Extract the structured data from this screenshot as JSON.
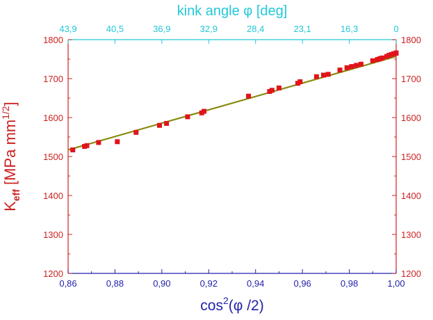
{
  "chart_data": {
    "type": "scatter",
    "top_title": "kink angle φ [deg]",
    "xlabel": {
      "base": "cos",
      "sup": "2",
      "rest": "(φ /2)"
    },
    "ylabel": {
      "base": "K",
      "sub": "eff",
      "rest": " [MPa mm",
      "sup": "1/2",
      "close": "]"
    },
    "xlim": [
      0.86,
      1.0
    ],
    "ylim": [
      1200,
      1800
    ],
    "x_ticks": [
      "0,86",
      "0,88",
      "0,90",
      "0,92",
      "0,94",
      "0,96",
      "0,98",
      "1,00"
    ],
    "y_ticks": [
      "1200",
      "1300",
      "1400",
      "1500",
      "1600",
      "1700",
      "1800"
    ],
    "top_ticks": [
      "43,9",
      "40,5",
      "36,9",
      "32,9",
      "28,4",
      "23,1",
      "16,3",
      "0"
    ],
    "grid": false,
    "colors": {
      "left_axis": "#cc2222",
      "right_axis": "#cc2222",
      "bottom_axis": "#2222aa",
      "top_axis": "#22c8d8",
      "points": "#e0141a",
      "fit_line": "#8a8a10",
      "frame": "#000000"
    },
    "series": [
      {
        "points": [
          [
            0.862,
            1517
          ],
          [
            0.867,
            1526
          ],
          [
            0.868,
            1528
          ],
          [
            0.873,
            1536
          ],
          [
            0.881,
            1538
          ],
          [
            0.889,
            1562
          ],
          [
            0.899,
            1580
          ],
          [
            0.902,
            1585
          ],
          [
            0.911,
            1602
          ],
          [
            0.917,
            1612
          ],
          [
            0.918,
            1616
          ],
          [
            0.937,
            1655
          ],
          [
            0.946,
            1667
          ],
          [
            0.947,
            1670
          ],
          [
            0.95,
            1676
          ],
          [
            0.958,
            1688
          ],
          [
            0.959,
            1692
          ],
          [
            0.966,
            1705
          ],
          [
            0.969,
            1709
          ],
          [
            0.971,
            1711
          ],
          [
            0.976,
            1722
          ],
          [
            0.979,
            1728
          ],
          [
            0.981,
            1731
          ],
          [
            0.983,
            1734
          ],
          [
            0.985,
            1737
          ],
          [
            0.99,
            1746
          ],
          [
            0.992,
            1749
          ],
          [
            0.993,
            1751
          ],
          [
            0.994,
            1753
          ],
          [
            0.996,
            1757
          ],
          [
            0.997,
            1760
          ],
          [
            0.998,
            1762
          ],
          [
            0.999,
            1764
          ],
          [
            1.0,
            1765
          ],
          [
            1.0,
            1766
          ]
        ]
      }
    ],
    "fit_line": {
      "x": [
        0.86,
        1.0
      ],
      "y": [
        1517,
        1757
      ]
    }
  }
}
